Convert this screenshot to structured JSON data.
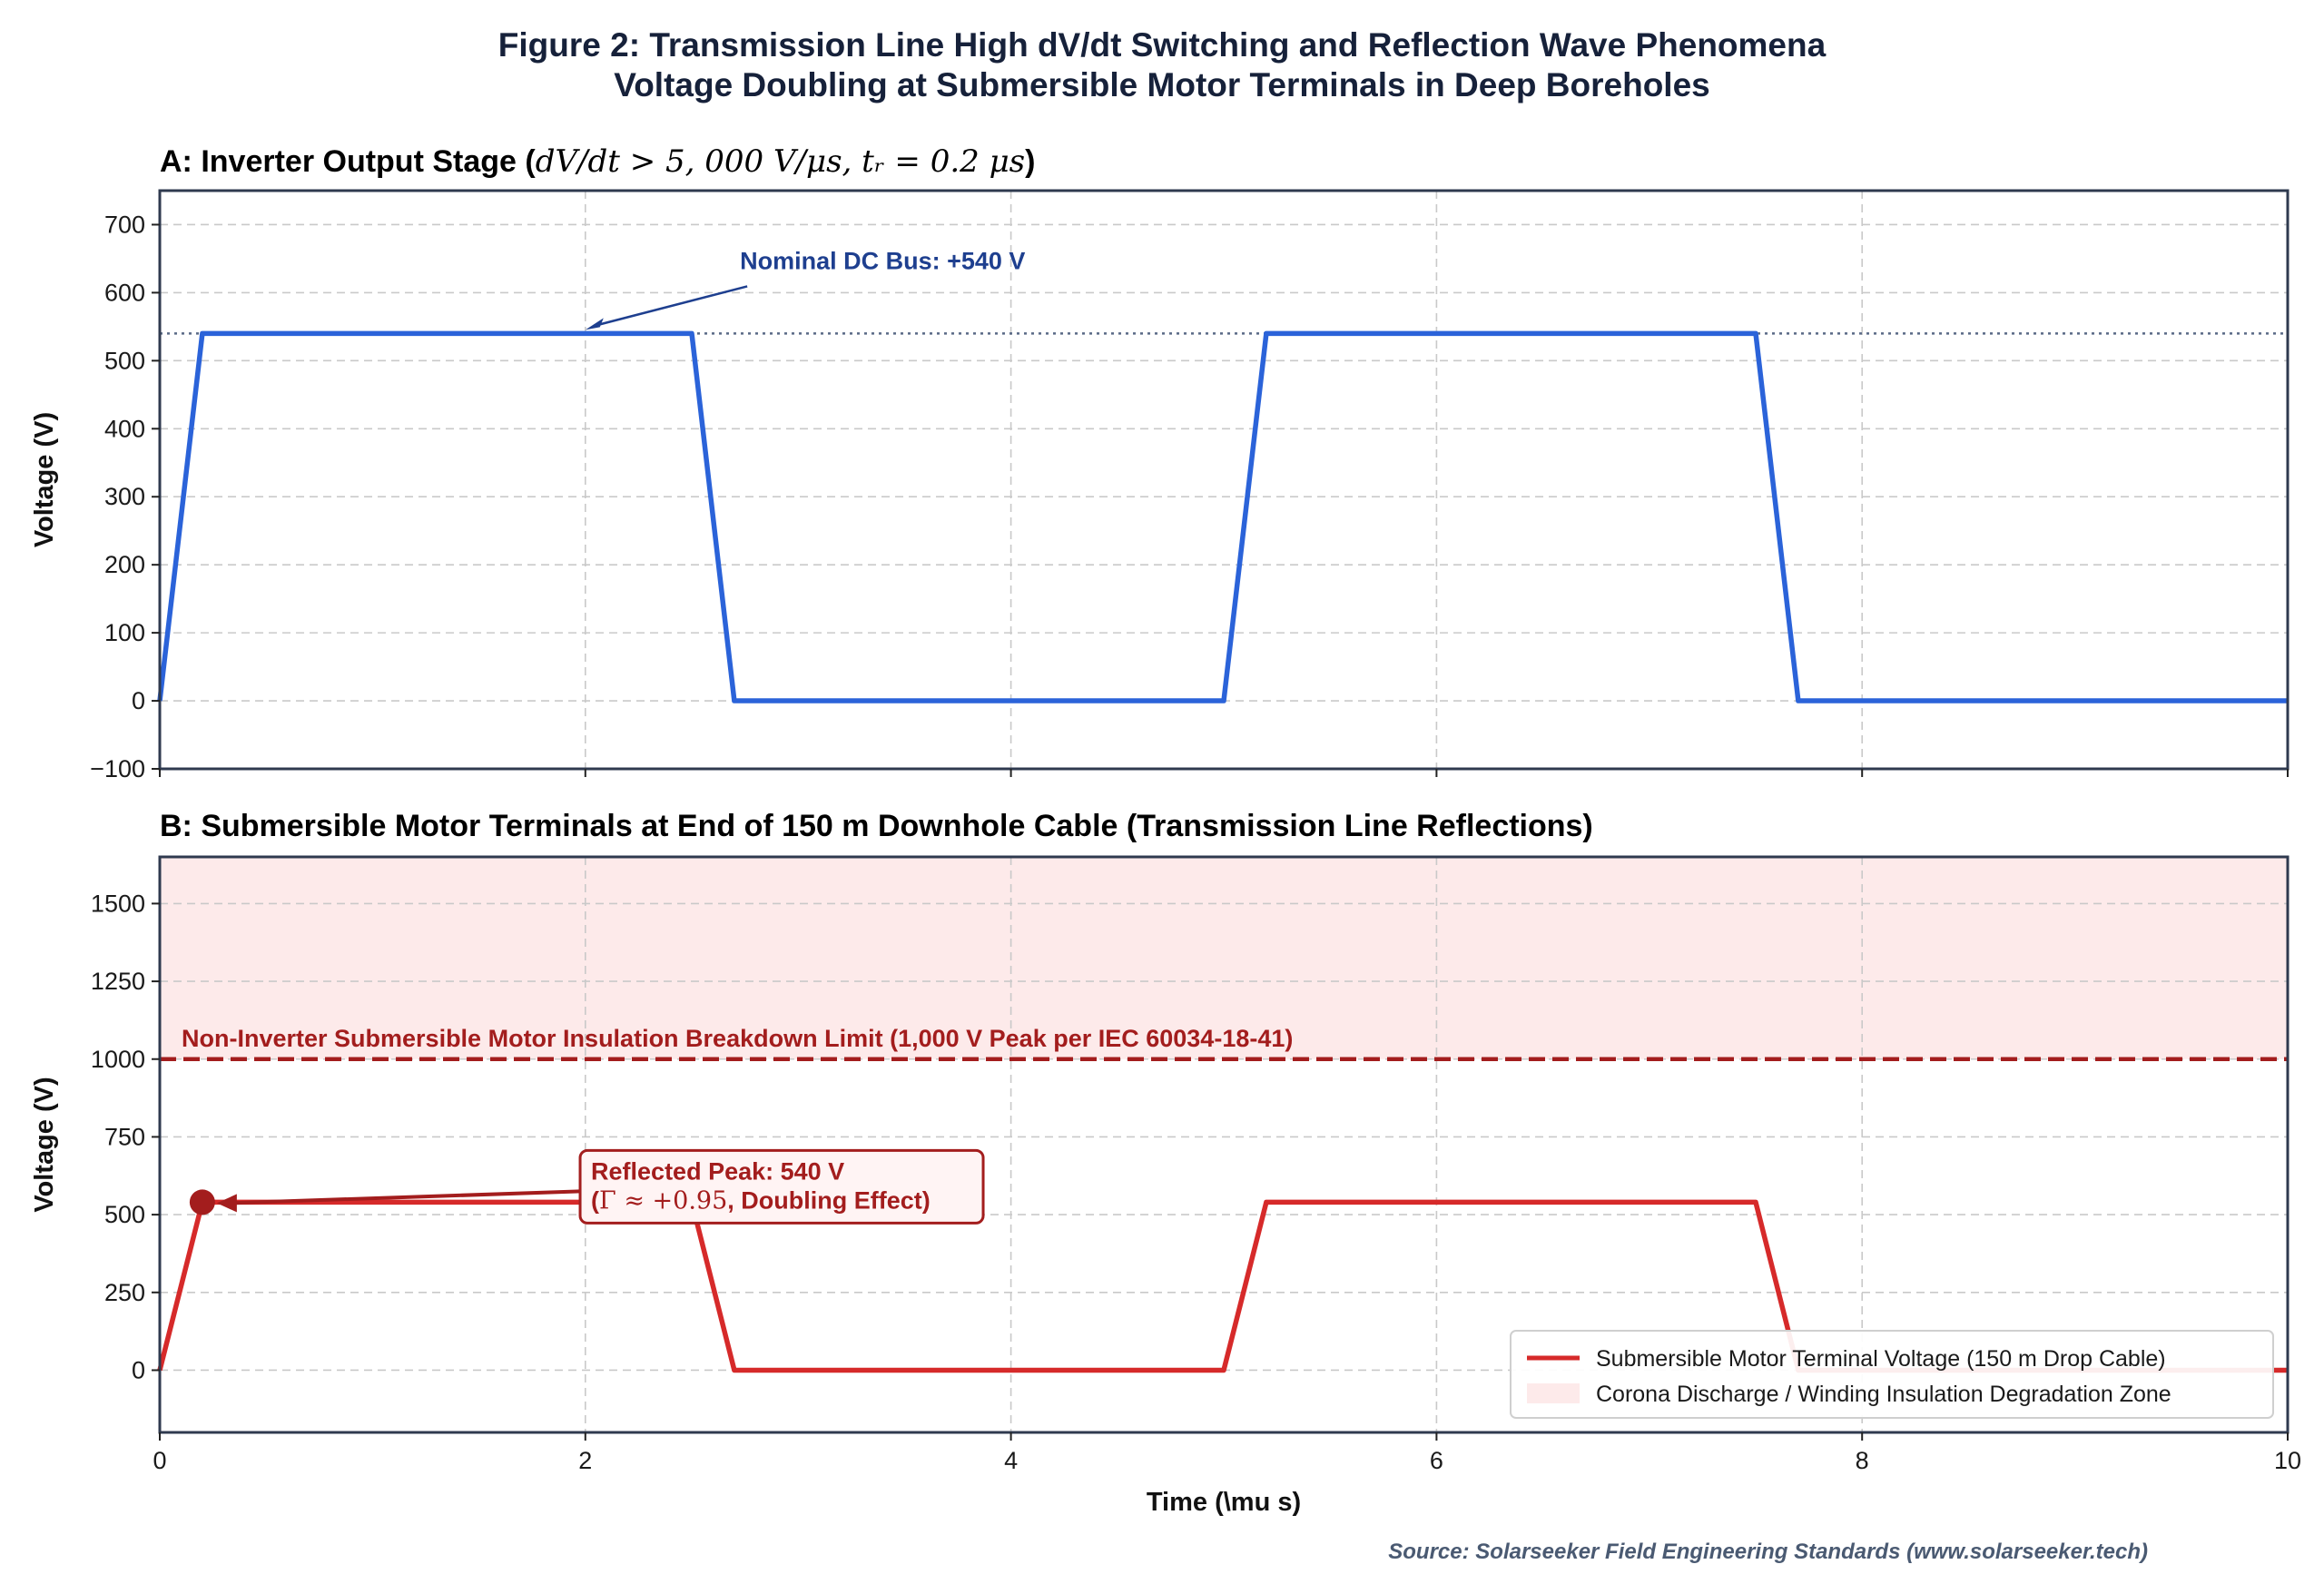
{
  "figure": {
    "title_line1": "Figure 2: Transmission Line High dV/dt Switching and Reflection Wave Phenomena",
    "title_line2": "Voltage Doubling at Submersible Motor Terminals in Deep Boreholes",
    "source": "Source: Solarseeker Field Engineering Standards (www.solarseeker.tech)"
  },
  "colors": {
    "panel_a": "#2b63d9",
    "panel_a_title": "#1e3f8f",
    "panel_b": "#d62a2a",
    "panel_b_title": "#a31d1d",
    "zone_fill": "#fdeaea",
    "frame": "#2f3a4f"
  },
  "chart_data": [
    {
      "type": "line",
      "panel": "A",
      "title": "A: Inverter Output Stage (dV/dt > 5, 000 V/μs, tᵣ = 0.2 μs)",
      "title_prefix": "A: Inverter Output Stage (",
      "title_math": "dV/dt > 5, 000 V/μs, tᵣ = 0.2 μs",
      "title_suffix": ")",
      "xlabel": "",
      "ylabel": "Voltage (V)",
      "xlim": [
        0,
        10
      ],
      "ylim": [
        -100,
        750
      ],
      "yticks": [
        -100,
        0,
        100,
        200,
        300,
        400,
        500,
        600,
        700
      ],
      "ytick_labels": [
        "−100",
        "0",
        "100",
        "200",
        "300",
        "400",
        "500",
        "600",
        "700"
      ],
      "xticks": [
        0,
        2,
        4,
        6,
        8,
        10
      ],
      "show_xtick_labels": false,
      "grid": true,
      "series": [
        {
          "x": [
            0,
            0.2,
            2.5,
            2.7,
            5.0,
            5.2,
            7.5,
            7.7,
            10
          ],
          "y": [
            0,
            540,
            540,
            0,
            0,
            540,
            540,
            0,
            0
          ]
        }
      ],
      "reference_line": {
        "y": 540,
        "style": "dotted"
      },
      "annotation": {
        "text": "Nominal DC Bus: +540 V",
        "x": 2.0,
        "y": 540,
        "text_x": 2.3,
        "text_y": 620
      }
    },
    {
      "type": "line",
      "panel": "B",
      "title": "B: Submersible Motor Terminals at End of 150 m Downhole Cable (Transmission Line Reflections)",
      "xlabel": "Time (\\mu s)",
      "ylabel": "Voltage (V)",
      "xlim": [
        0,
        10
      ],
      "ylim": [
        -200,
        1650
      ],
      "yticks": [
        0,
        250,
        500,
        750,
        1000,
        1250,
        1500
      ],
      "ytick_labels": [
        "0",
        "250",
        "500",
        "750",
        "1000",
        "1250",
        "1500"
      ],
      "xticks": [
        0,
        2,
        4,
        6,
        8,
        10
      ],
      "xtick_labels": [
        "0",
        "2",
        "4",
        "6",
        "8",
        "10"
      ],
      "show_xtick_labels": true,
      "grid": true,
      "series": [
        {
          "name": "Submersible Motor Terminal Voltage (150 m Drop Cable)",
          "x": [
            0,
            0.2,
            2.5,
            2.7,
            5.0,
            5.2,
            7.5,
            7.7,
            10
          ],
          "y": [
            0,
            540,
            540,
            0,
            0,
            540,
            540,
            0,
            0
          ]
        }
      ],
      "shaded_zone": {
        "name": "Corona Discharge / Winding Insulation Degradation Zone",
        "y_from": 1000,
        "y_to": 1650
      },
      "limit_line": {
        "y": 1000,
        "style": "dashed",
        "label": "Non-Inverter Submersible Motor Insulation Breakdown Limit (1,000 V Peak per IEC 60034-18-41)"
      },
      "peak_marker": {
        "x": 0.2,
        "y": 540
      },
      "annotation": {
        "line1": "Reflected Peak: 540 V",
        "line2": "(Γ ≈ +0.95, Doubling Effect)",
        "line2_open": "(",
        "line2_math": "Γ ≈ +0.95",
        "line2_rest": ", Doubling Effect)",
        "text_x": 1.6,
        "text_y": 540
      },
      "legend": {
        "placement": "lower-right"
      }
    }
  ]
}
